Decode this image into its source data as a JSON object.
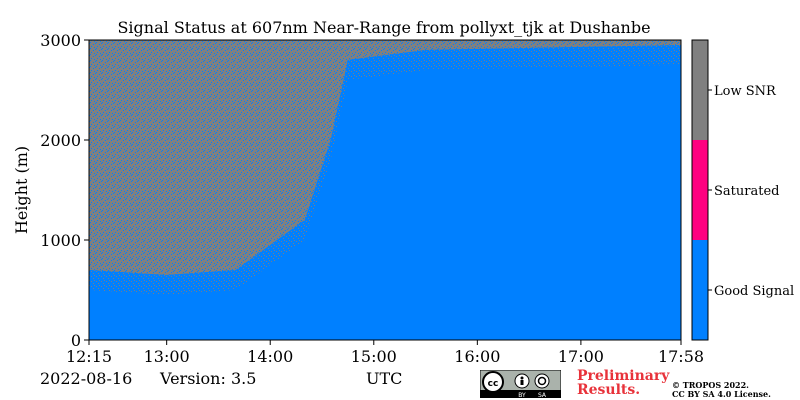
{
  "chart_data": {
    "type": "heatmap",
    "title": "Signal Status at 607nm Near-Range from pollyxt_tjk at Dushanbe",
    "ylabel": "Height (m)",
    "xlabel": "UTC",
    "x_range": [
      "12:15",
      "17:58"
    ],
    "x_ticks": [
      "12:15",
      "13:00",
      "14:00",
      "15:00",
      "16:00",
      "17:00",
      "17:58"
    ],
    "ylim": [
      0,
      3000
    ],
    "y_ticks": [
      "0",
      "1000",
      "2000",
      "3000"
    ],
    "colorbar": {
      "categories": [
        {
          "label": "Good Signal",
          "color": "#0080ff"
        },
        {
          "label": "Saturated",
          "color": "#ff0080"
        },
        {
          "label": "Low SNR",
          "color": "#808080"
        }
      ]
    },
    "low_snr_boundary": [
      {
        "x": "12:15",
        "height_m": 700
      },
      {
        "x": "13:00",
        "height_m": 650
      },
      {
        "x": "13:40",
        "height_m": 700
      },
      {
        "x": "14:20",
        "height_m": 1200
      },
      {
        "x": "14:35",
        "height_m": 2000
      },
      {
        "x": "14:45",
        "height_m": 2800
      },
      {
        "x": "15:30",
        "height_m": 2900
      },
      {
        "x": "17:58",
        "height_m": 2950
      }
    ]
  },
  "footer": {
    "date": "2022-08-16",
    "version": "Version: 3.5",
    "utc_label": "UTC",
    "preliminary": [
      "Preliminary",
      "Results."
    ],
    "copyright": [
      "© TROPOS 2022.",
      "CC BY SA 4.0 License."
    ],
    "cc_icons": [
      "cc-icon",
      "by-icon",
      "sa-icon"
    ],
    "cc_text": [
      "BY",
      "SA"
    ]
  }
}
